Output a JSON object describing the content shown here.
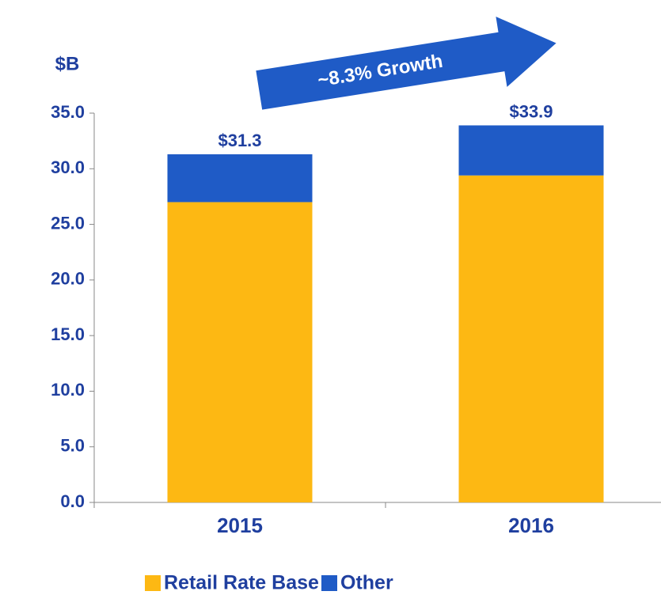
{
  "chart_data": {
    "type": "stacked_bar",
    "y_axis_label": "$B",
    "annotation": "~8.3% Growth",
    "categories": [
      "2015",
      "2016"
    ],
    "series": [
      {
        "name": "Retail Rate Base",
        "color": "#FDB813",
        "values": [
          27.0,
          29.4
        ]
      },
      {
        "name": "Other",
        "color": "#1F5BC6",
        "values": [
          4.3,
          4.5
        ]
      }
    ],
    "totals": [
      31.3,
      33.9
    ],
    "total_labels": [
      "$31.3",
      "$33.9"
    ],
    "ylim": [
      0,
      35
    ],
    "yticks": [
      {
        "value": 0,
        "label": "0.0"
      },
      {
        "value": 5,
        "label": "5.0"
      },
      {
        "value": 10,
        "label": "10.0"
      },
      {
        "value": 15,
        "label": "15.0"
      },
      {
        "value": 20,
        "label": "20.0"
      },
      {
        "value": 25,
        "label": "25.0"
      },
      {
        "value": 30,
        "label": "30.0"
      },
      {
        "value": 35,
        "label": "35.0"
      }
    ],
    "legend": "bottom"
  }
}
